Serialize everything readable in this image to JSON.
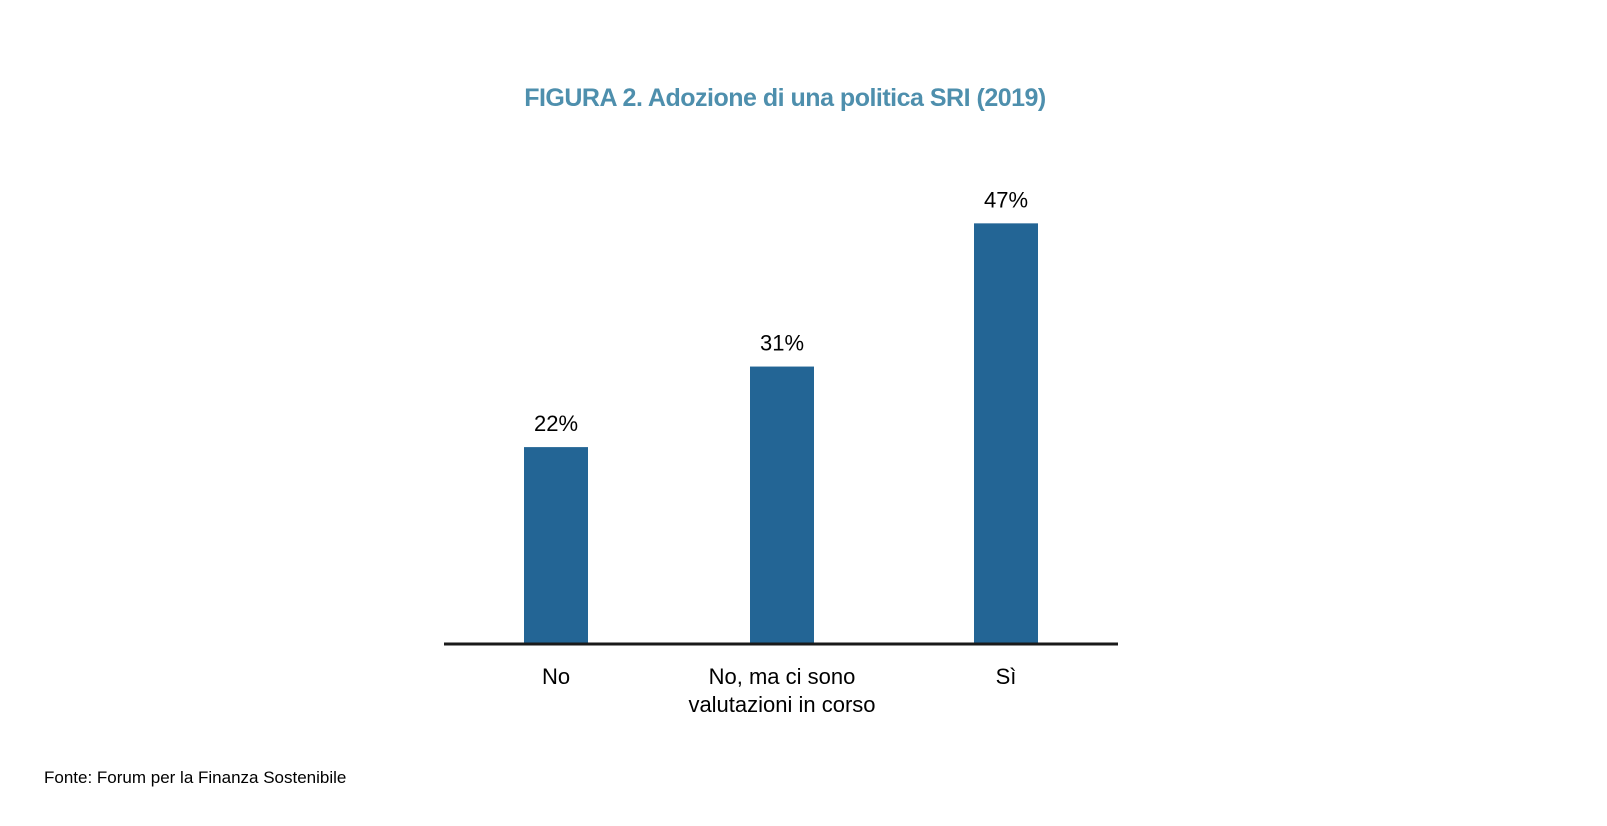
{
  "figure": {
    "title": "FIGURA 2. Adozione di una politica SRI (2019)",
    "source": "Fonte: Forum per la Finanza Sostenibile"
  },
  "chart_data": {
    "type": "bar",
    "title": "FIGURA 2. Adozione di una politica SRI (2019)",
    "categories": [
      [
        "No"
      ],
      [
        "No, ma ci sono",
        "valutazioni in corso"
      ],
      [
        "Sì"
      ]
    ],
    "values": [
      22,
      31,
      47
    ],
    "data_labels": [
      "22%",
      "31%",
      "47%"
    ],
    "unit": "%",
    "xlabel": "",
    "ylabel": "",
    "ylim": [
      0,
      47
    ],
    "grid": false,
    "legend": "none",
    "colors": {
      "bar": "#236595",
      "axis": "#1a1a1a",
      "title": "#4e8fad"
    }
  }
}
